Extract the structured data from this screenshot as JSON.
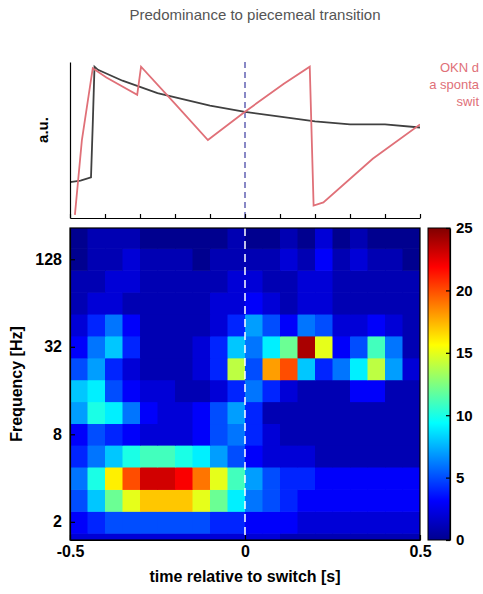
{
  "chart_data": [
    {
      "type": "line",
      "title": "Predominance to piecemeal transition",
      "y_label": "a.u.",
      "xlim": [
        -0.5,
        0.5
      ],
      "xticks": [
        -0.5,
        -0.4,
        -0.3,
        -0.2,
        -0.1,
        0,
        0.1,
        0.2,
        0.3,
        0.4,
        0.5
      ],
      "ylim": [
        0,
        1
      ],
      "yticks": [],
      "tick_labels": false,
      "vline": 0,
      "annotation": [
        "OKN d",
        "a sponta",
        "swit"
      ],
      "series": [
        {
          "color": "#404040",
          "x": [
            -0.5,
            -0.47,
            -0.44,
            -0.435,
            -0.43,
            -0.42,
            -0.35,
            -0.25,
            -0.1,
            0,
            0.1,
            0.2,
            0.3,
            0.4,
            0.5
          ],
          "values": [
            0.23,
            0.24,
            0.26,
            0.6,
            0.97,
            0.95,
            0.88,
            0.8,
            0.72,
            0.68,
            0.65,
            0.62,
            0.6,
            0.6,
            0.58
          ]
        },
        {
          "color": "#e07078",
          "x": [
            -0.486,
            -0.466,
            -0.435,
            -0.396,
            -0.308,
            -0.297,
            -0.199,
            -0.106,
            -0.001,
            0.111,
            0.185,
            0.196,
            0.224,
            0.365,
            0.5
          ],
          "values": [
            0.02,
            0.5,
            0.96,
            0.9,
            0.79,
            0.97,
            0.73,
            0.5,
            0.68,
            0.86,
            0.97,
            0.08,
            0.1,
            0.38,
            0.6
          ]
        }
      ]
    },
    {
      "type": "heatmap",
      "x_label": "time relative to switch [s]",
      "y_label": "Frequency [Hz]",
      "log": "y",
      "xlim": [
        -0.5,
        0.5
      ],
      "xticks": [
        -0.5,
        0,
        0.5
      ],
      "ylim": [
        1.5,
        210
      ],
      "yticks": [
        2,
        8,
        32,
        128
      ],
      "vline": 0,
      "x": [
        -0.475,
        -0.425,
        -0.375,
        -0.325,
        -0.275,
        -0.225,
        -0.175,
        -0.125,
        -0.075,
        -0.025,
        0.025,
        0.075,
        0.125,
        0.175,
        0.225,
        0.275,
        0.325,
        0.375,
        0.425,
        0.475
      ],
      "y": [
        1.4,
        2,
        2.8,
        4,
        5.7,
        8,
        11.3,
        16,
        22.6,
        32,
        45.3,
        64,
        90.5,
        128,
        181
      ],
      "values": [
        [
          2,
          2,
          2,
          2,
          2,
          2,
          2,
          2,
          2,
          2,
          2,
          2,
          1,
          1,
          1,
          1,
          1,
          1,
          1,
          1
        ],
        [
          3,
          4,
          5,
          5,
          5,
          5,
          5,
          5,
          4,
          4,
          3,
          3,
          3,
          2,
          2,
          2,
          2,
          2,
          2,
          2
        ],
        [
          5,
          8,
          12,
          15,
          17,
          17,
          17,
          15,
          12,
          9,
          6,
          5,
          4,
          3,
          3,
          3,
          3,
          3,
          3,
          3
        ],
        [
          6,
          10,
          16,
          20,
          23,
          23,
          22,
          19,
          15,
          11,
          7,
          5,
          4,
          4,
          3,
          3,
          3,
          3,
          3,
          3
        ],
        [
          4,
          6,
          8,
          10,
          11,
          11,
          10,
          9,
          7,
          5,
          3,
          2,
          2,
          2,
          1,
          1,
          1,
          1,
          1,
          1
        ],
        [
          3,
          5,
          4,
          3,
          2,
          2,
          2,
          3,
          5,
          6,
          4,
          2,
          1,
          1,
          1,
          1,
          1,
          1,
          1,
          1
        ],
        [
          7,
          10,
          9,
          6,
          3,
          2,
          2,
          3,
          5,
          7,
          4,
          1,
          1,
          1,
          1,
          1,
          1,
          1,
          1,
          1
        ],
        [
          8,
          9,
          5,
          3,
          2,
          2,
          1,
          1,
          2,
          4,
          6,
          4,
          2,
          1,
          1,
          1,
          3,
          3,
          1,
          1
        ],
        [
          5,
          7,
          4,
          2,
          1,
          1,
          1,
          2,
          4,
          14,
          5,
          18,
          20,
          8,
          4,
          6,
          9,
          14,
          7,
          2
        ],
        [
          3,
          6,
          8,
          4,
          1,
          1,
          1,
          2,
          4,
          8,
          6,
          9,
          12,
          24,
          15,
          3,
          5,
          11,
          6,
          1
        ],
        [
          2,
          4,
          6,
          3,
          1,
          1,
          1,
          1,
          2,
          4,
          7,
          5,
          3,
          6,
          5,
          2,
          2,
          3,
          2,
          1
        ],
        [
          1,
          2,
          2,
          1,
          1,
          1,
          1,
          1,
          2,
          2,
          3,
          2,
          1,
          2,
          2,
          1,
          1,
          1,
          1,
          1
        ],
        [
          1,
          1,
          2,
          2,
          1,
          1,
          1,
          1,
          1,
          2,
          2,
          1,
          1,
          2,
          2,
          1,
          1,
          1,
          1,
          1
        ],
        [
          0,
          1,
          1,
          2,
          1,
          1,
          1,
          0,
          1,
          1,
          1,
          1,
          2,
          1,
          3,
          1,
          2,
          1,
          1,
          0
        ],
        [
          0,
          1,
          1,
          1,
          0,
          0,
          0,
          0,
          0,
          1,
          0,
          0,
          1,
          0,
          2,
          0,
          1,
          0,
          0,
          0
        ]
      ],
      "colorbar": {
        "range": [
          0,
          25
        ],
        "ticks": [
          0,
          5,
          10,
          15,
          20,
          25
        ]
      }
    }
  ]
}
